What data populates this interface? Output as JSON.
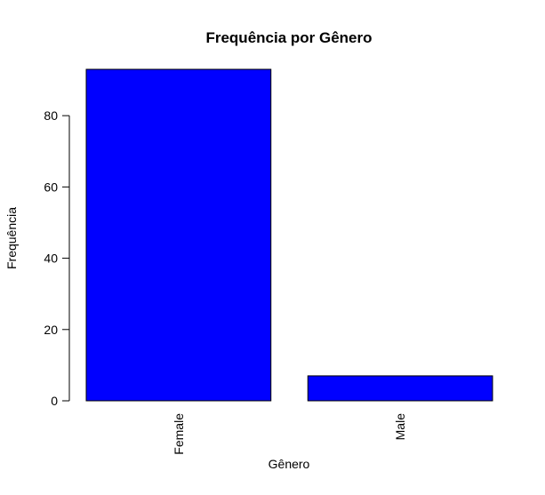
{
  "chart_data": {
    "type": "bar",
    "title": "Frequência por Gênero",
    "xlabel": "Gênero",
    "ylabel": "Frequência",
    "categories": [
      "Female",
      "Male"
    ],
    "values": [
      93,
      7
    ],
    "ylim": [
      0,
      93
    ],
    "yticks": [
      0,
      20,
      40,
      60,
      80
    ],
    "bar_color": "#0000ff",
    "bar_edge_color": "#000000",
    "grid": false,
    "legend": "none",
    "x_tick_label_orientation": "vertical"
  }
}
